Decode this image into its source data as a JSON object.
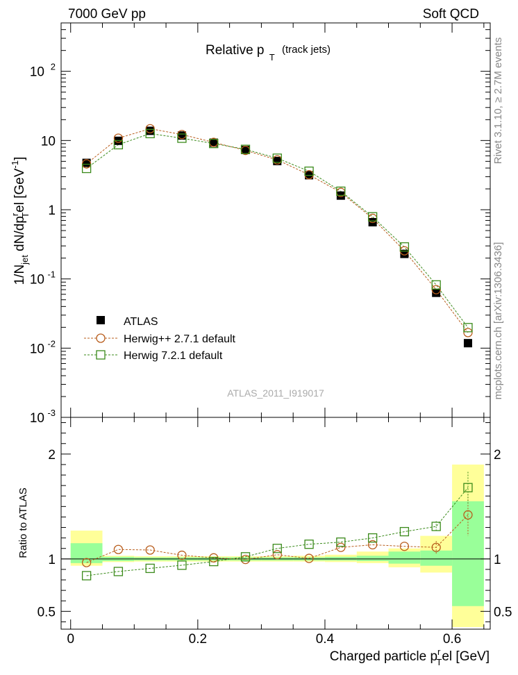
{
  "header": {
    "left": "7000 GeV pp",
    "right": "Soft QCD"
  },
  "side_labels": {
    "rivet": "Rivet 3.1.10, ≥ 2.7M events",
    "mcplots": "mcplots.cern.ch [arXiv:1306.3436]"
  },
  "watermark": "ATLAS_2011_I919017",
  "chart_data": [
    {
      "type": "scatter",
      "title": "Relative p_T (track jets)",
      "title_main": "Relative p",
      "title_sub": "T",
      "title_paren": "(track jets)",
      "ylabel": "1/N_jet dN/dp_T^rel [GeV^-1]",
      "ylabel_parts": {
        "a": "1/N",
        "jet": "jet",
        "b": " dN/dp",
        "r": "r",
        "T": "T",
        "c": "el [GeV",
        "exp": "-1",
        "d": "]"
      },
      "yscale": "log",
      "ylim": [
        0.001,
        500
      ],
      "xlim": [
        -0.015,
        0.66
      ],
      "y_tick_labels": [
        {
          "value": 0.001,
          "base": "10",
          "exp": "-3"
        },
        {
          "value": 0.01,
          "base": "10",
          "exp": "-2"
        },
        {
          "value": 0.1,
          "base": "10",
          "exp": "-1"
        },
        {
          "value": 1,
          "text": "1"
        },
        {
          "value": 10,
          "text": "10"
        },
        {
          "value": 100,
          "base": "10",
          "exp": "2"
        }
      ],
      "legend_position": "bottom-left",
      "legend": [
        {
          "label": "ATLAS",
          "marker": "filled-square",
          "color": "#000000"
        },
        {
          "label": "Herwig++ 2.7.1 default",
          "marker": "open-circle",
          "color": "#b85c1b"
        },
        {
          "label": "Herwig 7.2.1 default",
          "marker": "open-square",
          "color": "#3a8a1a"
        }
      ],
      "x": [
        0.025,
        0.075,
        0.125,
        0.175,
        0.225,
        0.275,
        0.325,
        0.375,
        0.425,
        0.475,
        0.525,
        0.575,
        0.625
      ],
      "series": [
        {
          "name": "ATLAS",
          "values": [
            4.75,
            9.9,
            13.8,
            11.8,
            9.3,
            7.3,
            5.05,
            3.15,
            1.6,
            0.66,
            0.23,
            0.063,
            0.0118
          ],
          "color": "#000000"
        },
        {
          "name": "Herwig++ 2.7.1 default",
          "values": [
            4.6,
            10.8,
            14.8,
            12.2,
            9.4,
            7.2,
            5.25,
            3.2,
            1.78,
            0.75,
            0.255,
            0.07,
            0.0168
          ],
          "color": "#b85c1b"
        },
        {
          "name": "Herwig 7.2.1 default",
          "values": [
            3.95,
            8.7,
            12.6,
            10.8,
            9.05,
            7.45,
            5.55,
            3.6,
            1.85,
            0.79,
            0.29,
            0.082,
            0.0198
          ],
          "color": "#3a8a1a"
        }
      ]
    },
    {
      "type": "scatter",
      "ylabel": "Ratio to ATLAS",
      "xlabel": "Charged particle p_T^rel [GeV]",
      "xlabel_parts": {
        "a": "Charged particle p",
        "r": "r",
        "T": "T",
        "b": "el [GeV]"
      },
      "ylim": [
        0.33,
        2.35
      ],
      "xlim": [
        -0.015,
        0.66
      ],
      "y_ticks": [
        "0.5",
        "1",
        "2"
      ],
      "y_tick_values": [
        0.5,
        1,
        2
      ],
      "x_ticks": [
        "0",
        "0.2",
        "0.4",
        "0.6"
      ],
      "x_tick_values": [
        0,
        0.2,
        0.4,
        0.6
      ],
      "x": [
        0.025,
        0.075,
        0.125,
        0.175,
        0.225,
        0.275,
        0.325,
        0.375,
        0.425,
        0.475,
        0.525,
        0.575,
        0.625
      ],
      "bins": [
        [
          0,
          0.05
        ],
        [
          0.05,
          0.1
        ],
        [
          0.1,
          0.15
        ],
        [
          0.15,
          0.2
        ],
        [
          0.2,
          0.25
        ],
        [
          0.25,
          0.3
        ],
        [
          0.3,
          0.35
        ],
        [
          0.35,
          0.4
        ],
        [
          0.4,
          0.45
        ],
        [
          0.45,
          0.5
        ],
        [
          0.5,
          0.55
        ],
        [
          0.55,
          0.6
        ],
        [
          0.6,
          0.65
        ]
      ],
      "band_stat": [
        [
          0.96,
          1.15
        ],
        [
          0.98,
          1.02
        ],
        [
          0.985,
          1.015
        ],
        [
          0.985,
          1.015
        ],
        [
          0.985,
          1.015
        ],
        [
          0.985,
          1.015
        ],
        [
          0.985,
          1.015
        ],
        [
          0.985,
          1.015
        ],
        [
          0.985,
          1.02
        ],
        [
          0.98,
          1.03
        ],
        [
          0.955,
          1.07
        ],
        [
          0.935,
          1.08
        ],
        [
          0.55,
          1.55
        ]
      ],
      "band_total": [
        [
          0.935,
          1.27
        ],
        [
          0.97,
          1.03
        ],
        [
          0.975,
          1.025
        ],
        [
          0.975,
          1.025
        ],
        [
          0.975,
          1.025
        ],
        [
          0.975,
          1.025
        ],
        [
          0.975,
          1.025
        ],
        [
          0.975,
          1.03
        ],
        [
          0.97,
          1.04
        ],
        [
          0.96,
          1.07
        ],
        [
          0.92,
          1.1
        ],
        [
          0.87,
          1.22
        ],
        [
          0.35,
          1.9
        ]
      ],
      "band_colors": {
        "total": "#ffff99",
        "stat": "#99ff99"
      },
      "series": [
        {
          "name": "Herwig++ 2.7.1 default",
          "values": [
            0.965,
            1.09,
            1.085,
            1.035,
            1.01,
            0.995,
            1.04,
            1.005,
            1.11,
            1.135,
            1.12,
            1.11,
            1.42
          ],
          "errors": [
            0,
            0,
            0,
            0,
            0,
            0,
            0,
            0,
            0,
            0,
            0,
            0.06,
            0.2
          ],
          "color": "#b85c1b"
        },
        {
          "name": "Herwig 7.2.1 default",
          "values": [
            0.84,
            0.88,
            0.91,
            0.94,
            0.975,
            1.02,
            1.1,
            1.14,
            1.16,
            1.2,
            1.26,
            1.31,
            1.68
          ],
          "errors": [
            0,
            0,
            0,
            0,
            0,
            0,
            0,
            0,
            0,
            0,
            0,
            0.05,
            0.15
          ],
          "color": "#3a8a1a"
        }
      ]
    }
  ]
}
